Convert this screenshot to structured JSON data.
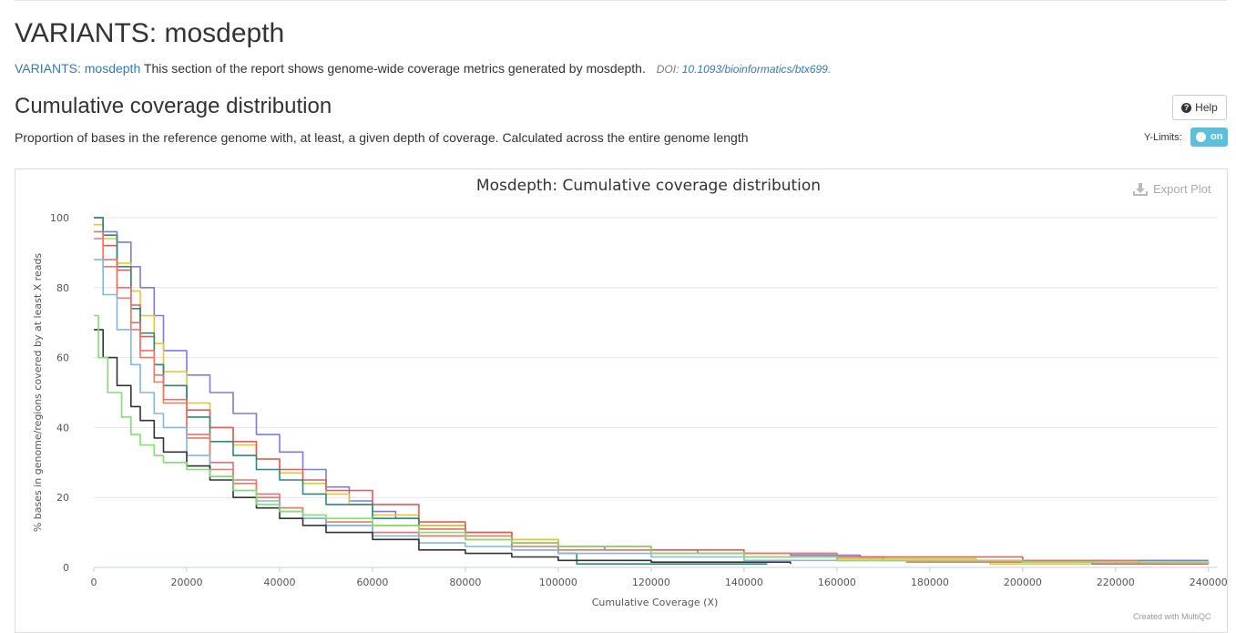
{
  "page": {
    "title": "VARIANTS: mosdepth",
    "intro_link": "VARIANTS: mosdepth",
    "intro_text": "This section of the report shows genome-wide coverage metrics generated by mosdepth.",
    "doi_label": "DOI:",
    "doi_value": "10.1093/bioinformatics/btx699."
  },
  "section": {
    "title": "Cumulative coverage distribution",
    "description": "Proportion of bases in the reference genome with, at least, a given depth of coverage. Calculated across the entire genome length",
    "help_label": "Help",
    "ylimits_label": "Y-Limits:",
    "ylimits_state": "on"
  },
  "plot_toolbar": {
    "export_label": "Export Plot",
    "credit": "Created with MultiQC"
  },
  "chart_data": {
    "type": "line",
    "title": "Mosdepth: Cumulative coverage distribution",
    "xlabel": "Cumulative Coverage (X)",
    "ylabel": "% bases in genome/regions covered by at least X reads",
    "xlim": [
      0,
      242000
    ],
    "ylim": [
      0,
      100
    ],
    "xticks": [
      0,
      20000,
      40000,
      60000,
      80000,
      100000,
      120000,
      140000,
      160000,
      180000,
      200000,
      220000,
      240000
    ],
    "yticks": [
      0,
      20,
      40,
      60,
      80,
      100
    ],
    "grid": true,
    "series": [
      {
        "color": "#7b7be8",
        "points": [
          [
            0,
            100
          ],
          [
            2000,
            96
          ],
          [
            5000,
            93
          ],
          [
            8000,
            86
          ],
          [
            10000,
            80
          ],
          [
            13000,
            72
          ],
          [
            15000,
            62
          ],
          [
            20000,
            55
          ],
          [
            25000,
            50
          ],
          [
            30000,
            44
          ],
          [
            35000,
            38
          ],
          [
            40000,
            33
          ],
          [
            45000,
            28
          ],
          [
            50000,
            23
          ],
          [
            55000,
            19
          ],
          [
            60000,
            16
          ],
          [
            65000,
            14
          ],
          [
            70000,
            12
          ],
          [
            80000,
            10
          ],
          [
            90000,
            8
          ],
          [
            100000,
            6
          ],
          [
            110000,
            5
          ],
          [
            130000,
            4
          ],
          [
            150000,
            3.5
          ],
          [
            165000,
            3
          ],
          [
            170000,
            2
          ],
          [
            240000,
            2
          ]
        ]
      },
      {
        "color": "#e8c630",
        "points": [
          [
            0,
            98
          ],
          [
            2000,
            94
          ],
          [
            5000,
            87
          ],
          [
            8000,
            79
          ],
          [
            10000,
            72
          ],
          [
            13000,
            64
          ],
          [
            15000,
            56
          ],
          [
            20000,
            47
          ],
          [
            25000,
            40
          ],
          [
            30000,
            35
          ],
          [
            35000,
            31
          ],
          [
            40000,
            27
          ],
          [
            45000,
            24
          ],
          [
            50000,
            21
          ],
          [
            55000,
            18
          ],
          [
            60000,
            15
          ],
          [
            70000,
            12
          ],
          [
            80000,
            10
          ],
          [
            90000,
            8
          ],
          [
            100000,
            6
          ],
          [
            120000,
            4
          ],
          [
            140000,
            3
          ],
          [
            160000,
            2.5
          ],
          [
            190000,
            2
          ],
          [
            193000,
            1
          ],
          [
            230000,
            1
          ]
        ]
      },
      {
        "color": "#e85a5a",
        "points": [
          [
            0,
            100
          ],
          [
            2000,
            92
          ],
          [
            5000,
            85
          ],
          [
            8000,
            75
          ],
          [
            10000,
            66
          ],
          [
            13000,
            58
          ],
          [
            15000,
            52
          ],
          [
            20000,
            45
          ],
          [
            25000,
            40
          ],
          [
            30000,
            36
          ],
          [
            35000,
            31
          ],
          [
            40000,
            28
          ],
          [
            45000,
            25
          ],
          [
            50000,
            22
          ],
          [
            60000,
            18
          ],
          [
            70000,
            13
          ],
          [
            80000,
            10
          ],
          [
            90000,
            7
          ],
          [
            100000,
            6
          ],
          [
            120000,
            5
          ],
          [
            140000,
            4
          ],
          [
            160000,
            3
          ],
          [
            200000,
            2
          ],
          [
            215000,
            1
          ],
          [
            240000,
            1
          ]
        ]
      },
      {
        "color": "#2b8a7a",
        "points": [
          [
            0,
            100
          ],
          [
            2000,
            95
          ],
          [
            5000,
            86
          ],
          [
            8000,
            74
          ],
          [
            10000,
            67
          ],
          [
            13000,
            58
          ],
          [
            15000,
            52
          ],
          [
            20000,
            43
          ],
          [
            25000,
            36
          ],
          [
            30000,
            32
          ],
          [
            35000,
            28
          ],
          [
            40000,
            25
          ],
          [
            45000,
            21
          ],
          [
            50000,
            18
          ],
          [
            60000,
            14
          ],
          [
            70000,
            11
          ],
          [
            80000,
            8
          ],
          [
            90000,
            5
          ],
          [
            100000,
            4
          ],
          [
            104000,
            1
          ],
          [
            145000,
            1
          ]
        ]
      },
      {
        "color": "#e87070",
        "points": [
          [
            0,
            96
          ],
          [
            2000,
            88
          ],
          [
            5000,
            80
          ],
          [
            8000,
            70
          ],
          [
            10000,
            62
          ],
          [
            13000,
            55
          ],
          [
            15000,
            48
          ],
          [
            20000,
            38
          ],
          [
            25000,
            30
          ],
          [
            30000,
            25
          ],
          [
            35000,
            21
          ],
          [
            40000,
            17
          ],
          [
            45000,
            14
          ],
          [
            50000,
            12
          ],
          [
            60000,
            10
          ],
          [
            70000,
            9
          ],
          [
            80000,
            8
          ],
          [
            90000,
            6
          ],
          [
            100000,
            5
          ],
          [
            120000,
            4
          ],
          [
            140000,
            3
          ],
          [
            160000,
            2
          ],
          [
            210000,
            2
          ],
          [
            225000,
            1
          ]
        ]
      },
      {
        "color": "#f07860",
        "points": [
          [
            0,
            94
          ],
          [
            2000,
            86
          ],
          [
            5000,
            77
          ],
          [
            8000,
            68
          ],
          [
            10000,
            60
          ],
          [
            13000,
            53
          ],
          [
            15000,
            47
          ],
          [
            20000,
            37
          ],
          [
            25000,
            28
          ],
          [
            30000,
            24
          ],
          [
            35000,
            20
          ],
          [
            40000,
            17
          ],
          [
            45000,
            14
          ],
          [
            50000,
            13
          ],
          [
            60000,
            12
          ],
          [
            70000,
            11
          ],
          [
            80000,
            9
          ],
          [
            90000,
            7
          ],
          [
            100000,
            5
          ],
          [
            120000,
            4
          ],
          [
            160000,
            2
          ],
          [
            175000,
            1.5
          ],
          [
            220000,
            1
          ]
        ]
      },
      {
        "color": "#80b8e0",
        "points": [
          [
            0,
            88
          ],
          [
            2000,
            78
          ],
          [
            5000,
            68
          ],
          [
            8000,
            58
          ],
          [
            10000,
            50
          ],
          [
            13000,
            44
          ],
          [
            15000,
            40
          ],
          [
            20000,
            32
          ],
          [
            25000,
            26
          ],
          [
            30000,
            22
          ],
          [
            35000,
            19
          ],
          [
            40000,
            16
          ],
          [
            45000,
            14
          ],
          [
            50000,
            12
          ],
          [
            60000,
            9
          ],
          [
            70000,
            7
          ],
          [
            80000,
            6
          ],
          [
            90000,
            5
          ],
          [
            100000,
            4
          ],
          [
            120000,
            3
          ],
          [
            140000,
            2
          ],
          [
            200000,
            1.5
          ],
          [
            240000,
            1
          ]
        ]
      },
      {
        "color": "#333333",
        "points": [
          [
            0,
            68
          ],
          [
            2000,
            60
          ],
          [
            5000,
            52
          ],
          [
            8000,
            46
          ],
          [
            10000,
            42
          ],
          [
            13000,
            37
          ],
          [
            15000,
            33
          ],
          [
            20000,
            29
          ],
          [
            25000,
            25
          ],
          [
            30000,
            20
          ],
          [
            35000,
            17
          ],
          [
            40000,
            14
          ],
          [
            45000,
            12
          ],
          [
            50000,
            10
          ],
          [
            60000,
            8
          ],
          [
            70000,
            5
          ],
          [
            80000,
            4
          ],
          [
            90000,
            3
          ],
          [
            100000,
            2
          ],
          [
            120000,
            1.5
          ],
          [
            150000,
            1
          ]
        ]
      },
      {
        "color": "#80e070",
        "points": [
          [
            0,
            72
          ],
          [
            1000,
            60
          ],
          [
            3000,
            50
          ],
          [
            6000,
            43
          ],
          [
            8000,
            38
          ],
          [
            10000,
            35
          ],
          [
            13000,
            32
          ],
          [
            15000,
            30
          ],
          [
            20000,
            28
          ],
          [
            25000,
            26
          ],
          [
            30000,
            22
          ],
          [
            35000,
            18
          ],
          [
            40000,
            16
          ],
          [
            45000,
            15
          ],
          [
            50000,
            14
          ],
          [
            60000,
            12
          ],
          [
            70000,
            10
          ],
          [
            80000,
            8
          ],
          [
            90000,
            7
          ],
          [
            100000,
            6
          ],
          [
            120000,
            4
          ],
          [
            140000,
            3
          ],
          [
            160000,
            2
          ],
          [
            200000,
            1.5
          ],
          [
            240000,
            1
          ]
        ]
      }
    ]
  }
}
